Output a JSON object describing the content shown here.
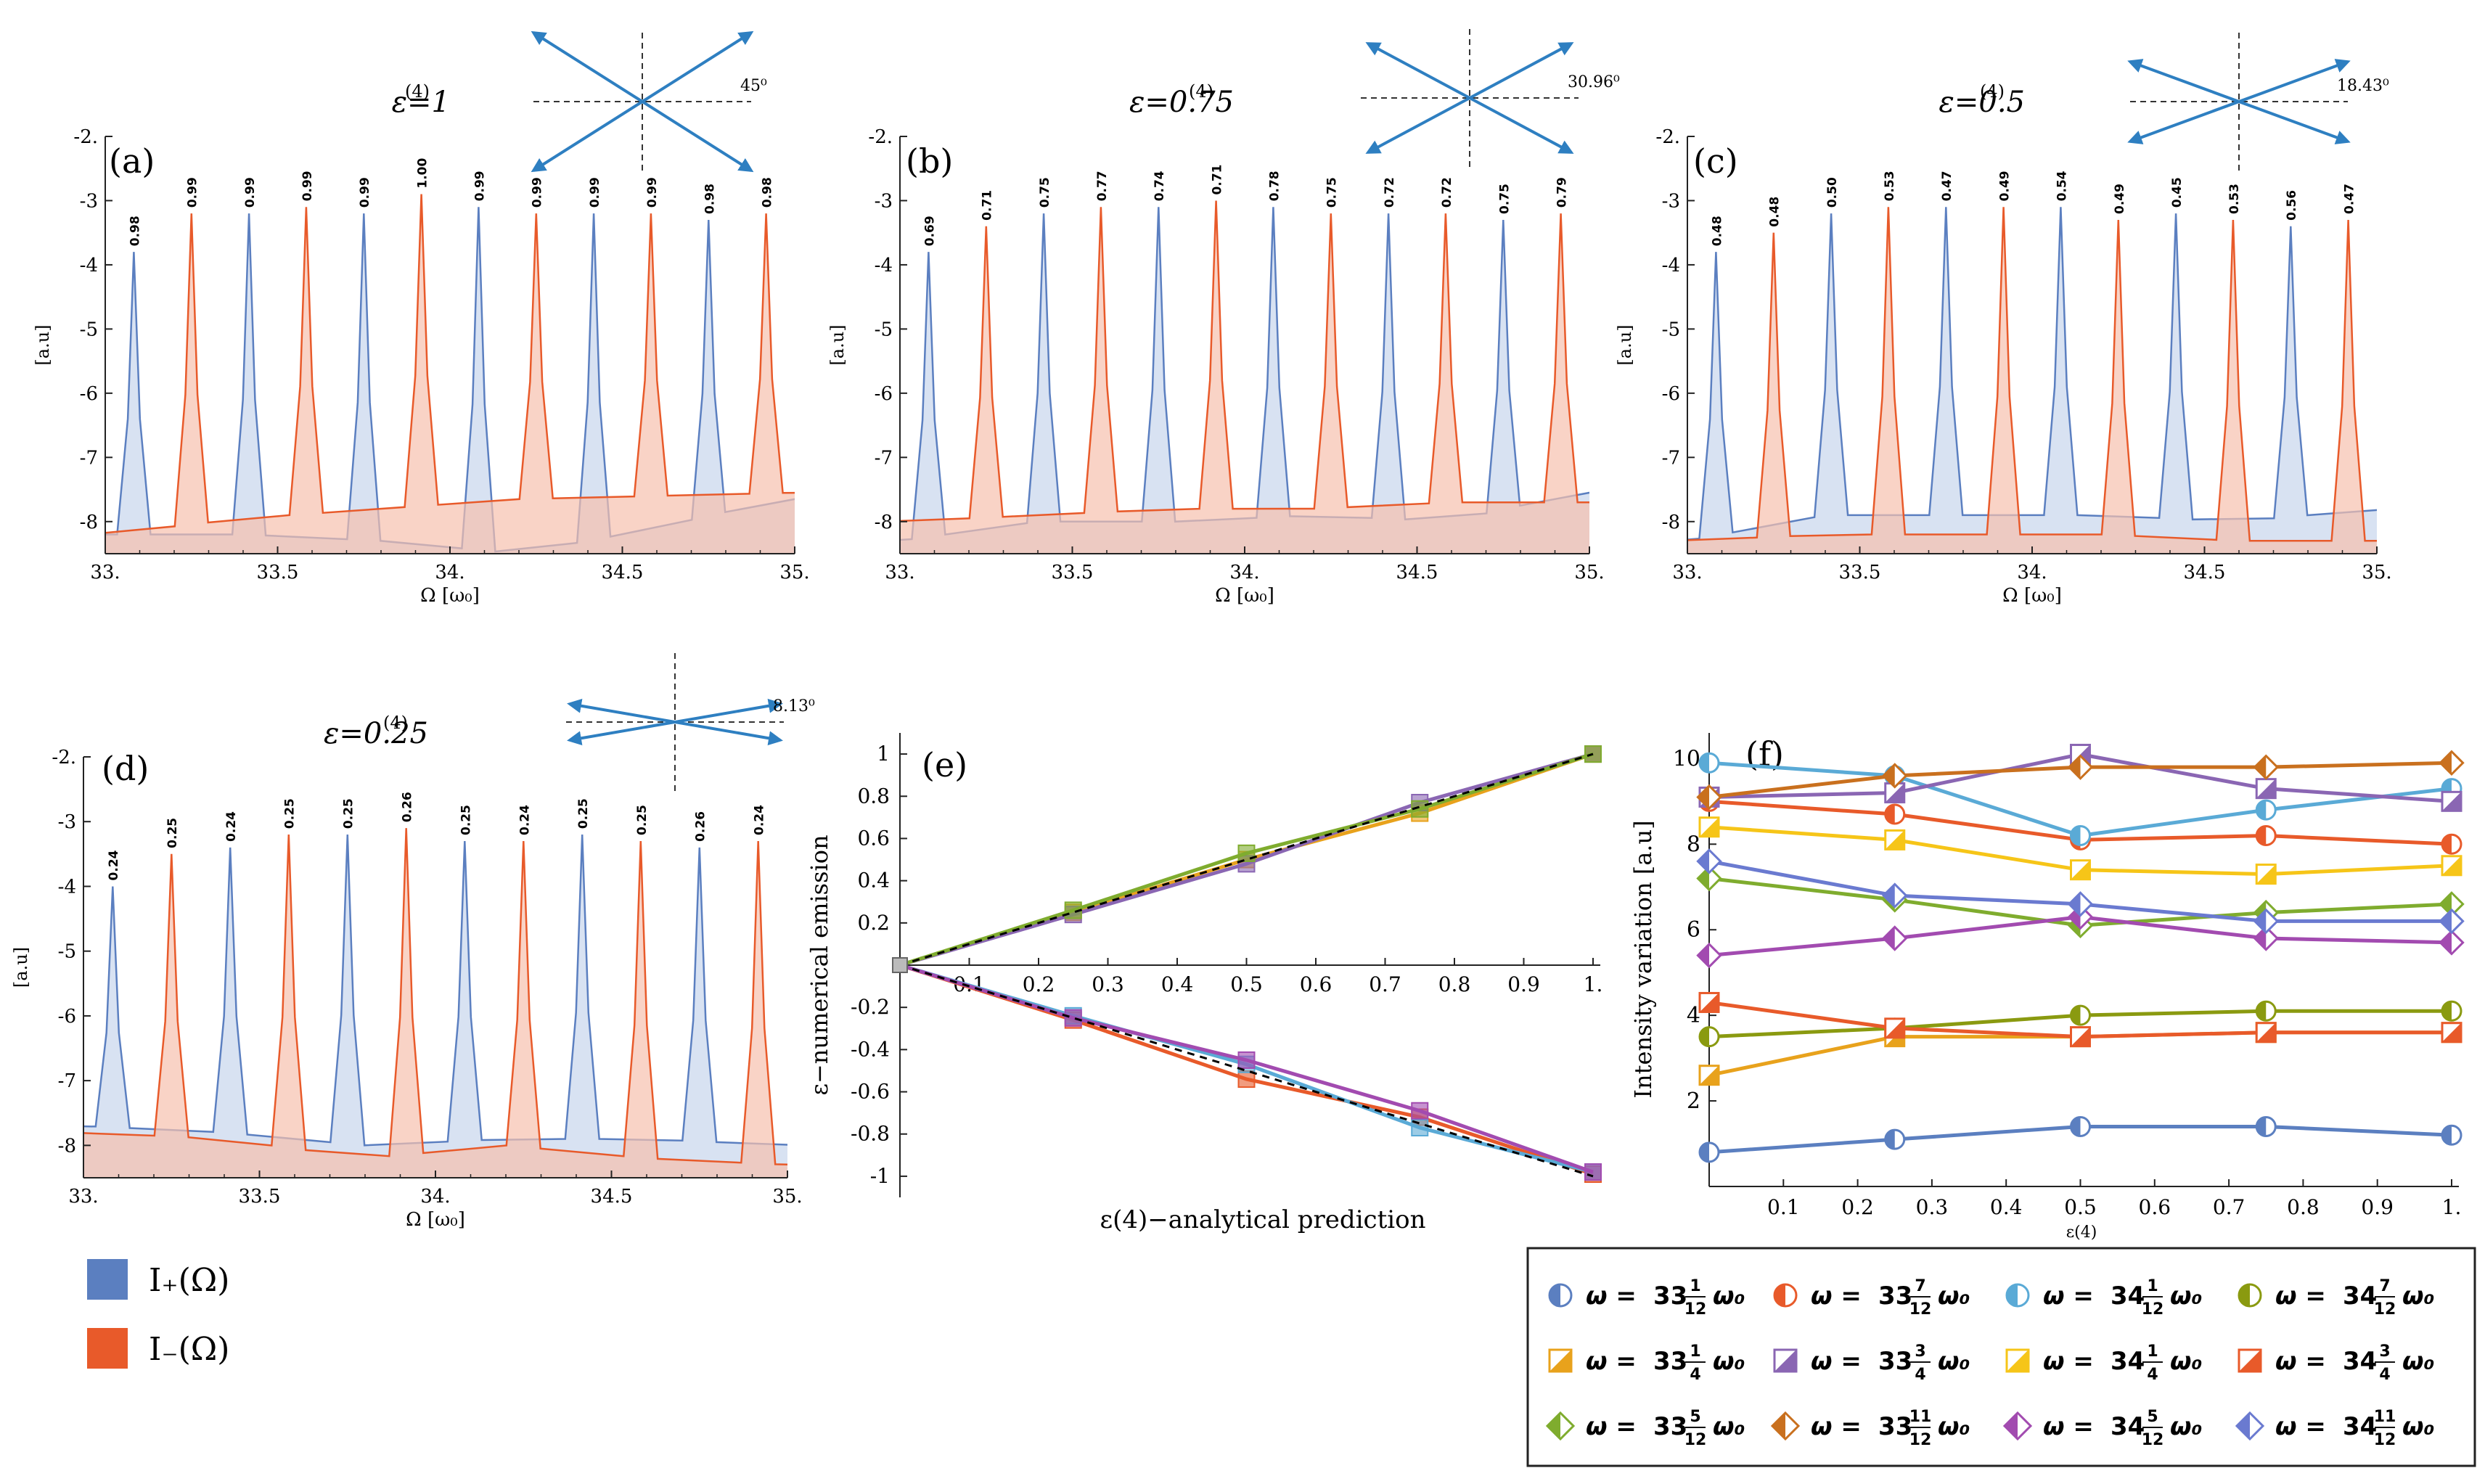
{
  "colors": {
    "blue": "#5b7fc0",
    "blue_fill": "#c8d5ec",
    "orange": "#e85a2a",
    "orange_fill": "#f7c1ae",
    "overlap_fill": "#cfb5b0",
    "arrow": "#2e7fc1",
    "dark_red": "#d13a2a",
    "gold": "#e8a21c",
    "yellow": "#f6c518",
    "purple": "#8a66b3",
    "green": "#7fac2e",
    "brown": "#c9701e",
    "magenta": "#a24bb0",
    "light_blue": "#5aaad6",
    "olive": "#8a9a10",
    "indigo": "#6a7ad0"
  },
  "chart_data": [
    {
      "id": "a",
      "type": "area",
      "panel_label": "(a)",
      "title": "ε(4)=1",
      "angle_label": "45⁰",
      "angle_deg": 45,
      "xlabel": "Ω [ω₀]",
      "ylabel": "[a.u]",
      "xlim": [
        33,
        35
      ],
      "ylim": [
        -8.5,
        -2
      ],
      "xticks": [
        "33.",
        "33.5",
        "34.",
        "34.5",
        "35."
      ],
      "yticks": [
        "-2.",
        "-3",
        "-4",
        "-5",
        "-6",
        "-7",
        "-8"
      ],
      "series": [
        {
          "name": "I+(Ω)",
          "peaks_x": [
            33.083,
            33.417,
            33.75,
            34.083,
            34.417,
            34.75
          ],
          "peaks_y": [
            -3.8,
            -3.2,
            -3.2,
            -3.1,
            -3.2,
            -3.3
          ],
          "baseline": [
            -8.2,
            -8.2,
            -8.3,
            -8.5,
            -8.1,
            -7.6
          ]
        },
        {
          "name": "I−(Ω)",
          "peaks_x": [
            33.25,
            33.583,
            33.917,
            34.25,
            34.583,
            34.917
          ],
          "peaks_y": [
            -3.2,
            -3.1,
            -2.9,
            -3.2,
            -3.2,
            -3.2
          ],
          "baseline": [
            -8.2,
            -7.95,
            -7.8,
            -7.65,
            -7.6,
            -7.55
          ]
        }
      ],
      "labels": [
        "0.98",
        "0.99",
        "0.99",
        "0.99",
        "0.99",
        "1.00",
        "0.99",
        "0.99",
        "0.99",
        "0.99",
        "0.98",
        "0.98"
      ]
    },
    {
      "id": "b",
      "type": "area",
      "panel_label": "(b)",
      "title": "ε(4)=0.75",
      "angle_label": "30.96⁰",
      "angle_deg": 30.96,
      "xlabel": "Ω [ω₀]",
      "ylabel": "[a.u]",
      "xlim": [
        33,
        35
      ],
      "ylim": [
        -8.5,
        -2
      ],
      "xticks": [
        "33.",
        "33.5",
        "34.",
        "34.5",
        "35."
      ],
      "yticks": [
        "-2.",
        "-3",
        "-4",
        "-5",
        "-6",
        "-7",
        "-8"
      ],
      "series": [
        {
          "name": "I+(Ω)",
          "peaks_x": [
            33.083,
            33.417,
            33.75,
            34.083,
            34.417,
            34.75
          ],
          "peaks_y": [
            -3.8,
            -3.2,
            -3.1,
            -3.1,
            -3.2,
            -3.3
          ],
          "baseline": [
            -8.3,
            -8.0,
            -8.0,
            -7.9,
            -8.0,
            -7.5
          ]
        },
        {
          "name": "I−(Ω)",
          "peaks_x": [
            33.25,
            33.583,
            33.917,
            34.25,
            34.583,
            34.917
          ],
          "peaks_y": [
            -3.4,
            -3.1,
            -3.0,
            -3.2,
            -3.2,
            -3.2
          ],
          "baseline": [
            -8.0,
            -7.9,
            -7.8,
            -7.8,
            -7.7,
            -7.7
          ]
        }
      ],
      "labels": [
        "0.69",
        "0.71",
        "0.75",
        "0.77",
        "0.74",
        "0.71",
        "0.78",
        "0.75",
        "0.72",
        "0.72",
        "0.75",
        "0.79"
      ]
    },
    {
      "id": "c",
      "type": "area",
      "panel_label": "(c)",
      "title": "ε(4)=0.5",
      "angle_label": "18.43⁰",
      "angle_deg": 18.43,
      "xlabel": "Ω [ω₀]",
      "ylabel": "[a.u]",
      "xlim": [
        33,
        35
      ],
      "ylim": [
        -8.5,
        -2
      ],
      "xticks": [
        "33.",
        "33.5",
        "34.",
        "34.5",
        "35."
      ],
      "yticks": [
        "-2.",
        "-3",
        "-4",
        "-5",
        "-6",
        "-7",
        "-8"
      ],
      "series": [
        {
          "name": "I+(Ω)",
          "peaks_x": [
            33.083,
            33.417,
            33.75,
            34.083,
            34.417,
            34.75
          ],
          "peaks_y": [
            -3.8,
            -3.2,
            -3.1,
            -3.1,
            -3.2,
            -3.4
          ],
          "baseline": [
            -8.3,
            -7.9,
            -7.9,
            -7.9,
            -8.0,
            -7.8
          ]
        },
        {
          "name": "I−(Ω)",
          "peaks_x": [
            33.25,
            33.583,
            33.917,
            34.25,
            34.583,
            34.917
          ],
          "peaks_y": [
            -3.5,
            -3.1,
            -3.1,
            -3.3,
            -3.3,
            -3.3
          ],
          "baseline": [
            -8.3,
            -8.2,
            -8.2,
            -8.2,
            -8.3,
            -8.3
          ]
        }
      ],
      "labels": [
        "0.48",
        "0.48",
        "0.50",
        "0.53",
        "0.47",
        "0.49",
        "0.54",
        "0.49",
        "0.45",
        "0.53",
        "0.56",
        "0.47"
      ]
    },
    {
      "id": "d",
      "type": "area",
      "panel_label": "(d)",
      "title": "ε(4)=0.25",
      "angle_label": "8.13⁰",
      "angle_deg": 8.13,
      "xlabel": "Ω [ω₀]",
      "ylabel": "[a.u]",
      "xlim": [
        33,
        35
      ],
      "ylim": [
        -8.5,
        -2
      ],
      "xticks": [
        "33.",
        "33.5",
        "34.",
        "34.5",
        "35."
      ],
      "yticks": [
        "-2.",
        "-3",
        "-4",
        "-5",
        "-6",
        "-7",
        "-8"
      ],
      "series": [
        {
          "name": "I+(Ω)",
          "peaks_x": [
            33.083,
            33.417,
            33.75,
            34.083,
            34.417,
            34.75
          ],
          "peaks_y": [
            -4.0,
            -3.4,
            -3.2,
            -3.3,
            -3.2,
            -3.4
          ],
          "baseline": [
            -7.7,
            -7.8,
            -8.0,
            -7.9,
            -7.9,
            -8.0
          ]
        },
        {
          "name": "I−(Ω)",
          "peaks_x": [
            33.25,
            33.583,
            33.917,
            34.25,
            34.583,
            34.917
          ],
          "peaks_y": [
            -3.5,
            -3.2,
            -3.1,
            -3.3,
            -3.3,
            -3.3
          ],
          "baseline": [
            -7.8,
            -7.9,
            -8.2,
            -8.0,
            -8.2,
            -8.3
          ]
        }
      ],
      "labels": [
        "0.24",
        "0.25",
        "0.24",
        "0.25",
        "0.25",
        "0.26",
        "0.25",
        "0.24",
        "0.25",
        "0.25",
        "0.26",
        "0.24"
      ]
    },
    {
      "id": "e",
      "type": "line",
      "panel_label": "(e)",
      "xlabel": "ε(4)−analytical prediction",
      "ylabel": "ε−numerical emission",
      "xlim": [
        0,
        1
      ],
      "ylim": [
        -1.1,
        1.1
      ],
      "xticks": [
        "0.1",
        "0.2",
        "0.3",
        "0.4",
        "0.5",
        "0.6",
        "0.7",
        "0.8",
        "0.9",
        "1."
      ],
      "yticks": [
        "-1",
        "-0.8",
        "-0.6",
        "-0.4",
        "-0.2",
        "0.2",
        "0.4",
        "0.6",
        "0.8",
        "1"
      ],
      "x": [
        0,
        0.25,
        0.5,
        0.75,
        1
      ],
      "series": [
        {
          "name": "ω = 33 1/4 ω0",
          "values": [
            0,
            0.25,
            0.5,
            0.72,
            1
          ],
          "color": "#e8a21c"
        },
        {
          "name": "ω = 33 3/4 ω0",
          "values": [
            0,
            0.24,
            0.48,
            0.77,
            1
          ],
          "color": "#8a66b3"
        },
        {
          "name": "ω = 34 1/4 ω0",
          "values": [
            0,
            0.26,
            0.53,
            0.74,
            1
          ],
          "color": "#7fac2e"
        },
        {
          "name": "ω = 34 3/4 ω0",
          "values": [
            0,
            -0.26,
            -0.54,
            -0.72,
            -0.99
          ],
          "color": "#e85a2a"
        },
        {
          "name": "ω = 33 1/12 ω0",
          "values": [
            0,
            -0.24,
            -0.47,
            -0.77,
            -0.98
          ],
          "color": "#5aaad6"
        },
        {
          "name": "ω = 34 5/12 ω0",
          "values": [
            0,
            -0.25,
            -0.45,
            -0.69,
            -0.98
          ],
          "color": "#a24bb0"
        }
      ],
      "reference": {
        "name": "ε = ε(4)",
        "values": [
          0,
          0.25,
          0.5,
          0.75,
          1
        ]
      }
    },
    {
      "id": "f",
      "type": "line",
      "panel_label": "(f)",
      "xlabel": "ε(4)",
      "ylabel": "Intensity variation [a.u]",
      "xlim": [
        0,
        1
      ],
      "ylim": [
        0,
        10.6
      ],
      "xticks": [
        "0.1",
        "0.2",
        "0.3",
        "0.4",
        "0.5",
        "0.6",
        "0.7",
        "0.8",
        "0.9",
        "1."
      ],
      "yticks": [
        "2",
        "4",
        "6",
        "8",
        "10"
      ],
      "x": [
        0,
        0.25,
        0.5,
        0.75,
        1
      ],
      "series": [
        {
          "name": "ω = 33 1/12 ω0",
          "values": [
            0.8,
            1.1,
            1.4,
            1.4,
            1.2
          ],
          "color": "#5b7fc0",
          "marker": "circle"
        },
        {
          "name": "ω = 33 7/12 ω0",
          "values": [
            9.0,
            8.7,
            8.1,
            8.2,
            8.0
          ],
          "color": "#e85a2a",
          "marker": "circle"
        },
        {
          "name": "ω = 34 1/12 ω0",
          "values": [
            9.9,
            9.6,
            8.2,
            8.8,
            9.3
          ],
          "color": "#5aaad6",
          "marker": "circle"
        },
        {
          "name": "ω = 34 7/12 ω0",
          "values": [
            3.5,
            3.7,
            4.0,
            4.1,
            4.1
          ],
          "color": "#8a9a10",
          "marker": "circle"
        },
        {
          "name": "ω = 33 1/4 ω0",
          "values": [
            2.6,
            3.5,
            3.5,
            3.6,
            3.6
          ],
          "color": "#e8a21c",
          "marker": "square"
        },
        {
          "name": "ω = 33 3/4 ω0",
          "values": [
            9.1,
            9.2,
            10.1,
            9.3,
            9.0
          ],
          "color": "#8a66b3",
          "marker": "square"
        },
        {
          "name": "ω = 34 1/4 ω0",
          "values": [
            8.4,
            8.1,
            7.4,
            7.3,
            7.5
          ],
          "color": "#f6c518",
          "marker": "square"
        },
        {
          "name": "ω = 34 3/4 ω0",
          "values": [
            4.3,
            3.7,
            3.5,
            3.6,
            3.6
          ],
          "color": "#e85a2a",
          "marker": "square"
        },
        {
          "name": "ω = 33 5/12 ω0",
          "values": [
            7.2,
            6.7,
            6.1,
            6.4,
            6.6
          ],
          "color": "#7fac2e",
          "marker": "diamond"
        },
        {
          "name": "ω = 33 11/12 ω0",
          "values": [
            9.1,
            9.6,
            9.8,
            9.8,
            9.9
          ],
          "color": "#c9701e",
          "marker": "diamond"
        },
        {
          "name": "ω = 34 5/12 ω0",
          "values": [
            5.4,
            5.8,
            6.3,
            5.8,
            5.7
          ],
          "color": "#a24bb0",
          "marker": "diamond"
        },
        {
          "name": "ω = 34 11/12 ω0",
          "values": [
            7.6,
            6.8,
            6.6,
            6.2,
            6.2
          ],
          "color": "#6a7ad0",
          "marker": "diamond"
        }
      ]
    }
  ],
  "legend_left": [
    {
      "label": "I₊(Ω)",
      "color": "#5b7fc0"
    },
    {
      "label": "I₋(Ω)",
      "color": "#e85a2a"
    }
  ],
  "legend_right": [
    {
      "whole": "33",
      "num": "1",
      "den": "12",
      "marker": "circle",
      "color": "#5b7fc0"
    },
    {
      "whole": "33",
      "num": "7",
      "den": "12",
      "marker": "circle",
      "color": "#e85a2a"
    },
    {
      "whole": "34",
      "num": "1",
      "den": "12",
      "marker": "circle",
      "color": "#5aaad6"
    },
    {
      "whole": "34",
      "num": "7",
      "den": "12",
      "marker": "circle",
      "color": "#8a9a10"
    },
    {
      "whole": "33",
      "num": "1",
      "den": "4",
      "marker": "square",
      "color": "#e8a21c"
    },
    {
      "whole": "33",
      "num": "3",
      "den": "4",
      "marker": "square",
      "color": "#8a66b3"
    },
    {
      "whole": "34",
      "num": "1",
      "den": "4",
      "marker": "square",
      "color": "#f6c518"
    },
    {
      "whole": "34",
      "num": "3",
      "den": "4",
      "marker": "square",
      "color": "#e85a2a"
    },
    {
      "whole": "33",
      "num": "5",
      "den": "12",
      "marker": "diamond",
      "color": "#7fac2e"
    },
    {
      "whole": "33",
      "num": "11",
      "den": "12",
      "marker": "diamond",
      "color": "#c9701e"
    },
    {
      "whole": "34",
      "num": "5",
      "den": "12",
      "marker": "diamond",
      "color": "#a24bb0"
    },
    {
      "whole": "34",
      "num": "11",
      "den": "12",
      "marker": "diamond",
      "color": "#6a7ad0"
    }
  ],
  "legend_prefix": "ω = ",
  "legend_suffix": "ω₀"
}
